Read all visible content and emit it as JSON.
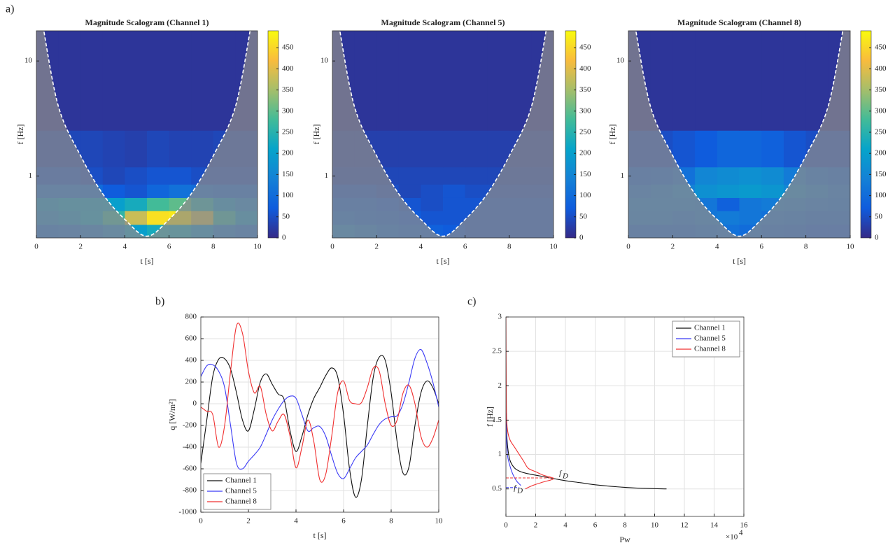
{
  "chart_data": [
    {
      "type": "scalogram",
      "panel_label": "a)",
      "title": "Magnitude Scalogram (Channel 1)",
      "xlabel": "t [s]",
      "ylabel": "f [Hz]",
      "xlim": [
        0,
        10
      ],
      "xticks": [
        0,
        2,
        4,
        6,
        8,
        10
      ],
      "ylim": [
        0.29,
        18.3
      ],
      "yticks": [
        1,
        10
      ],
      "log_y": true,
      "xbins": [
        0,
        1,
        2,
        3,
        4,
        5,
        6,
        7,
        8,
        9,
        10
      ],
      "ybins": [
        0.29,
        0.38,
        0.5,
        0.65,
        0.85,
        1.2,
        2.5,
        18.3
      ],
      "z": [
        [
          100,
          110,
          120,
          150,
          200,
          230,
          220,
          170,
          130,
          110
        ],
        [
          150,
          170,
          200,
          260,
          380,
          460,
          470,
          380,
          250,
          180
        ],
        [
          170,
          190,
          190,
          200,
          230,
          280,
          300,
          240,
          170,
          140
        ],
        [
          110,
          110,
          100,
          70,
          60,
          90,
          110,
          100,
          90,
          90
        ],
        [
          60,
          60,
          50,
          40,
          50,
          60,
          60,
          50,
          50,
          50
        ],
        [
          40,
          40,
          40,
          35,
          30,
          40,
          35,
          35,
          40,
          40
        ],
        [
          15,
          15,
          15,
          15,
          15,
          15,
          15,
          15,
          15,
          15
        ]
      ],
      "coi": {
        "t": [
          0.3,
          1,
          2,
          3,
          4,
          5,
          6,
          7,
          8,
          9,
          9.7
        ],
        "f": [
          20,
          4,
          1.5,
          0.7,
          0.42,
          0.3,
          0.42,
          0.7,
          1.5,
          4,
          20
        ]
      },
      "clim": [
        0,
        490
      ],
      "cticks": [
        0,
        50,
        100,
        150,
        200,
        250,
        300,
        350,
        400,
        450
      ]
    },
    {
      "type": "scalogram",
      "title": "Magnitude Scalogram (Channel 5)",
      "xlabel": "t [s]",
      "ylabel": "f [Hz]",
      "xlim": [
        0,
        10
      ],
      "xticks": [
        0,
        2,
        4,
        6,
        8,
        10
      ],
      "ylim": [
        0.29,
        18.3
      ],
      "yticks": [
        1,
        10
      ],
      "log_y": true,
      "xbins": [
        0,
        1,
        2,
        3,
        4,
        5,
        6,
        7,
        8,
        9,
        10
      ],
      "ybins": [
        0.29,
        0.38,
        0.5,
        0.65,
        0.85,
        1.2,
        2.5,
        18.3
      ],
      "z": [
        [
          140,
          120,
          100,
          90,
          80,
          70,
          60,
          60,
          60,
          60
        ],
        [
          100,
          90,
          80,
          70,
          60,
          60,
          60,
          60,
          60,
          60
        ],
        [
          80,
          80,
          70,
          60,
          50,
          60,
          60,
          60,
          60,
          60
        ],
        [
          60,
          60,
          50,
          40,
          50,
          60,
          50,
          50,
          50,
          50
        ],
        [
          40,
          40,
          40,
          40,
          40,
          40,
          40,
          40,
          40,
          40
        ],
        [
          30,
          30,
          30,
          30,
          30,
          30,
          30,
          30,
          30,
          30
        ],
        [
          15,
          15,
          15,
          15,
          15,
          15,
          15,
          15,
          15,
          15
        ]
      ],
      "coi": {
        "t": [
          0.3,
          1,
          2,
          3,
          4,
          5,
          6,
          7,
          8,
          9,
          9.7
        ],
        "f": [
          20,
          4,
          1.5,
          0.7,
          0.42,
          0.3,
          0.42,
          0.7,
          1.5,
          4,
          20
        ]
      },
      "clim": [
        0,
        490
      ],
      "cticks": [
        0,
        50,
        100,
        150,
        200,
        250,
        300,
        350,
        400,
        450
      ]
    },
    {
      "type": "scalogram",
      "title": "Magnitude Scalogram (Channel 8)",
      "xlabel": "t [s]",
      "ylabel": "f [Hz]",
      "xlim": [
        0,
        10
      ],
      "xticks": [
        0,
        2,
        4,
        6,
        8,
        10
      ],
      "ylim": [
        0.29,
        18.3
      ],
      "yticks": [
        1,
        10
      ],
      "log_y": true,
      "xbins": [
        0,
        1,
        2,
        3,
        4,
        5,
        6,
        7,
        8,
        9,
        10
      ],
      "ybins": [
        0.29,
        0.38,
        0.5,
        0.65,
        0.85,
        1.2,
        2.5,
        18.3
      ],
      "z": [
        [
          90,
          90,
          90,
          100,
          110,
          100,
          90,
          80,
          70,
          70
        ],
        [
          120,
          120,
          110,
          120,
          130,
          120,
          110,
          100,
          90,
          90
        ],
        [
          130,
          130,
          130,
          120,
          80,
          120,
          130,
          120,
          110,
          100
        ],
        [
          110,
          120,
          140,
          170,
          180,
          190,
          180,
          150,
          130,
          110
        ],
        [
          80,
          90,
          110,
          150,
          160,
          170,
          160,
          130,
          100,
          90
        ],
        [
          50,
          50,
          60,
          70,
          90,
          90,
          80,
          60,
          50,
          50
        ],
        [
          15,
          15,
          15,
          15,
          15,
          15,
          15,
          15,
          15,
          15
        ]
      ],
      "coi": {
        "t": [
          0.3,
          1,
          2,
          3,
          4,
          5,
          6,
          7,
          8,
          9,
          9.7
        ],
        "f": [
          20,
          4,
          1.5,
          0.7,
          0.42,
          0.3,
          0.42,
          0.7,
          1.5,
          4,
          20
        ]
      },
      "clim": [
        0,
        490
      ],
      "cticks": [
        0,
        50,
        100,
        150,
        200,
        250,
        300,
        350,
        400,
        450
      ]
    },
    {
      "type": "line",
      "panel_label": "b)",
      "xlabel": "t [s]",
      "ylabel": "q [W/m²]",
      "xlim": [
        0,
        10
      ],
      "xticks": [
        0,
        2,
        4,
        6,
        8,
        10
      ],
      "ylim": [
        -1000,
        800
      ],
      "yticks": [
        -1000,
        -800,
        -600,
        -400,
        -200,
        0,
        200,
        400,
        600,
        800
      ],
      "grid": true,
      "legend": "lower left",
      "x": [
        0,
        0.25,
        0.5,
        0.75,
        1,
        1.25,
        1.5,
        1.75,
        2,
        2.25,
        2.5,
        2.75,
        3,
        3.25,
        3.5,
        3.75,
        4,
        4.25,
        4.5,
        4.75,
        5,
        5.25,
        5.5,
        5.75,
        6,
        6.25,
        6.5,
        6.75,
        7,
        7.25,
        7.5,
        7.75,
        8,
        8.25,
        8.5,
        8.75,
        9,
        9.25,
        9.5,
        9.75,
        10
      ],
      "series": [
        {
          "name": "Channel 1",
          "color": "#111111",
          "values": [
            -550,
            -150,
            250,
            410,
            415,
            320,
            100,
            -150,
            -250,
            -50,
            200,
            275,
            180,
            90,
            40,
            -250,
            -440,
            -300,
            -100,
            50,
            150,
            260,
            330,
            250,
            -100,
            -600,
            -860,
            -700,
            -200,
            250,
            430,
            400,
            100,
            -350,
            -640,
            -580,
            -200,
            100,
            210,
            150,
            0
          ]
        },
        {
          "name": "Channel 5",
          "color": "#3b3bf5",
          "values": [
            250,
            350,
            360,
            300,
            150,
            -200,
            -550,
            -600,
            -530,
            -470,
            -400,
            -280,
            -150,
            -50,
            30,
            70,
            50,
            -100,
            -250,
            -220,
            -210,
            -300,
            -480,
            -640,
            -690,
            -600,
            -500,
            -440,
            -380,
            -280,
            -190,
            -140,
            -120,
            -110,
            0,
            200,
            420,
            500,
            380,
            200,
            -30
          ]
        },
        {
          "name": "Channel 8",
          "color": "#f03030",
          "values": [
            -30,
            -70,
            -100,
            -400,
            -200,
            300,
            720,
            650,
            300,
            100,
            160,
            -100,
            -250,
            -160,
            -100,
            -300,
            -590,
            -400,
            -150,
            -350,
            -700,
            -650,
            -300,
            100,
            210,
            30,
            0,
            10,
            150,
            330,
            300,
            0,
            -200,
            -150,
            100,
            170,
            0,
            -300,
            -400,
            -320,
            -150
          ]
        }
      ]
    },
    {
      "type": "xyline",
      "panel_label": "c)",
      "xlabel": "Pw",
      "ylabel": "f [Hz]",
      "x_multiplier": {
        "base": "×10",
        "exponent": "4"
      },
      "xlim": [
        0,
        160000
      ],
      "xticks": [
        {
          "value": 0,
          "label": "0"
        },
        {
          "value": 20000,
          "label": "2"
        },
        {
          "value": 40000,
          "label": "4"
        },
        {
          "value": 60000,
          "label": "6"
        },
        {
          "value": 80000,
          "label": "8"
        },
        {
          "value": 100000,
          "label": "10"
        },
        {
          "value": 120000,
          "label": "12"
        },
        {
          "value": 140000,
          "label": "14"
        },
        {
          "value": 160000,
          "label": "16"
        }
      ],
      "ylim": [
        0.1,
        3
      ],
      "yticks": [
        0.5,
        1,
        1.5,
        2,
        2.5,
        3
      ],
      "grid": true,
      "legend": "upper right",
      "series": [
        {
          "name": "Channel 1",
          "color": "#111111",
          "x": [
            0,
            500,
            1500,
            3000,
            6000,
            10000,
            15000,
            20000,
            25000,
            32000,
            40000,
            50000,
            60000,
            75000,
            90000,
            108000
          ],
          "values": [
            1.6,
            1.3,
            1.05,
            0.9,
            0.8,
            0.75,
            0.72,
            0.7,
            0.68,
            0.65,
            0.62,
            0.59,
            0.56,
            0.53,
            0.51,
            0.5
          ]
        },
        {
          "name": "Channel 5",
          "color": "#3b3bf5",
          "x": [
            0,
            300,
            1000,
            2500,
            4500,
            7000,
            10000
          ],
          "values": [
            1.6,
            1.3,
            1.0,
            0.85,
            0.72,
            0.62,
            0.55
          ]
        },
        {
          "name": "Channel 8",
          "color": "#f03030",
          "x": [
            0,
            200,
            500,
            1500,
            3000,
            6000,
            9000,
            12000,
            15000,
            20000,
            25000,
            32000,
            25000,
            18000,
            13000
          ],
          "values": [
            3,
            2.0,
            1.5,
            1.3,
            1.2,
            1.1,
            1.0,
            0.9,
            0.8,
            0.75,
            0.7,
            0.65,
            0.6,
            0.55,
            0.5
          ]
        }
      ],
      "annotations": [
        {
          "color": "#f03030",
          "x": 32000,
          "y": 0.66,
          "symbol": "f",
          "subscript": "D"
        },
        {
          "color": "#3b3bf5",
          "x": 9000,
          "y": 0.52,
          "symbol": "f",
          "subscript": "D"
        }
      ]
    }
  ]
}
